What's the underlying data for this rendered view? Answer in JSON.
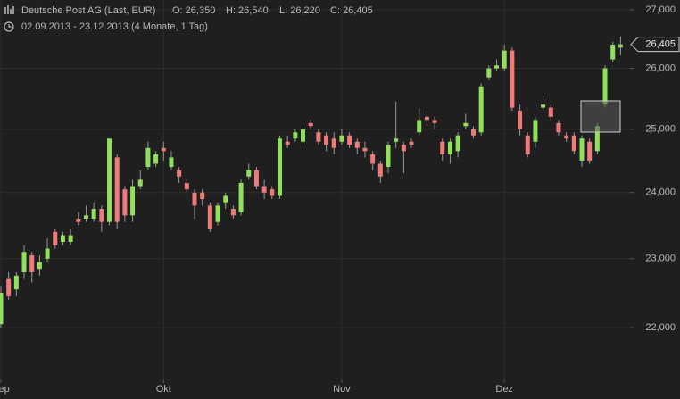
{
  "chart_data": {
    "type": "candlestick",
    "title": "Deutsche Post AG (Last, EUR)",
    "ohlc_labels": [
      "O: 26,350",
      "H: 26,540",
      "L: 26,220",
      "C: 26,405"
    ],
    "subtitle": "02.09.2013 - 23.12.2013 (4 Monate, 1 Tag)",
    "last_price_label": "26,405",
    "categories": [
      "Sep",
      null,
      null,
      null,
      null,
      null,
      null,
      null,
      null,
      null,
      null,
      null,
      null,
      null,
      null,
      null,
      null,
      null,
      null,
      null,
      null,
      "Okt",
      null,
      null,
      null,
      null,
      null,
      null,
      null,
      null,
      null,
      null,
      null,
      null,
      null,
      null,
      null,
      null,
      null,
      null,
      null,
      null,
      null,
      null,
      "Nov",
      null,
      null,
      null,
      null,
      null,
      null,
      null,
      null,
      null,
      null,
      null,
      null,
      null,
      null,
      null,
      null,
      null,
      null,
      null,
      null,
      "Dez",
      null,
      null,
      null,
      null,
      null,
      null,
      null,
      null,
      null,
      null,
      null,
      null,
      null,
      null,
      null
    ],
    "open": [
      22.05,
      22.7,
      22.55,
      22.8,
      23.05,
      22.85,
      23.0,
      23.4,
      23.25,
      23.25,
      23.6,
      23.6,
      23.6,
      23.75,
      23.55,
      24.55,
      24.05,
      23.65,
      24.1,
      24.4,
      24.45,
      24.7,
      24.4,
      24.35,
      24.15,
      24.0,
      24.0,
      23.8,
      23.55,
      23.85,
      23.75,
      23.7,
      24.25,
      24.35,
      24.1,
      24.05,
      23.95,
      24.8,
      24.85,
      24.8,
      25.1,
      24.95,
      24.9,
      24.85,
      24.8,
      24.9,
      24.8,
      24.7,
      24.6,
      24.45,
      24.4,
      24.8,
      24.75,
      24.8,
      24.95,
      25.2,
      25.15,
      24.8,
      24.6,
      24.65,
      25.05,
      25.0,
      24.95,
      25.85,
      26.0,
      26.0,
      26.3,
      25.3,
      24.9,
      24.8,
      25.35,
      25.35,
      25.1,
      24.9,
      24.9,
      24.5,
      24.8,
      24.65,
      25.4,
      26.15,
      26.35
    ],
    "high": [
      22.6,
      22.8,
      22.8,
      23.2,
      23.1,
      23.05,
      23.3,
      23.45,
      23.4,
      23.45,
      23.7,
      23.8,
      23.85,
      23.8,
      24.85,
      24.6,
      24.1,
      24.2,
      24.35,
      24.8,
      24.65,
      24.8,
      24.65,
      24.4,
      24.2,
      24.05,
      24.05,
      23.85,
      23.85,
      24.0,
      23.8,
      24.2,
      24.45,
      24.4,
      24.2,
      24.1,
      24.9,
      24.9,
      25.0,
      25.1,
      25.15,
      25.0,
      24.95,
      24.95,
      25.0,
      24.95,
      24.85,
      24.8,
      24.65,
      24.5,
      24.8,
      25.45,
      24.8,
      24.85,
      25.35,
      25.3,
      25.2,
      24.85,
      24.85,
      24.95,
      25.25,
      25.05,
      25.75,
      26.05,
      26.15,
      26.4,
      26.35,
      25.4,
      24.95,
      25.2,
      25.55,
      25.4,
      25.15,
      24.95,
      24.95,
      24.9,
      24.85,
      25.1,
      26.05,
      26.45,
      26.54
    ],
    "low": [
      22.0,
      22.4,
      22.45,
      22.7,
      22.65,
      22.75,
      22.95,
      23.15,
      23.2,
      23.2,
      23.5,
      23.55,
      23.55,
      23.4,
      23.5,
      23.45,
      23.55,
      23.55,
      24.05,
      24.35,
      24.4,
      24.5,
      24.35,
      24.15,
      24.0,
      23.6,
      23.8,
      23.4,
      23.5,
      23.75,
      23.6,
      23.65,
      24.2,
      24.05,
      23.9,
      23.9,
      23.9,
      24.7,
      24.8,
      24.75,
      25.0,
      24.75,
      24.65,
      24.6,
      24.75,
      24.7,
      24.6,
      24.55,
      24.35,
      24.15,
      24.3,
      24.7,
      24.3,
      24.7,
      24.9,
      25.05,
      25.0,
      24.5,
      24.45,
      24.55,
      25.0,
      24.85,
      24.9,
      25.8,
      25.95,
      25.95,
      25.3,
      24.9,
      24.55,
      24.7,
      25.3,
      25.15,
      24.9,
      24.8,
      24.6,
      24.4,
      24.45,
      24.6,
      25.35,
      26.1,
      26.22
    ],
    "close": [
      22.5,
      22.45,
      22.75,
      23.1,
      22.8,
      22.95,
      23.15,
      23.2,
      23.35,
      23.35,
      23.55,
      23.65,
      23.75,
      23.55,
      24.85,
      23.55,
      23.65,
      24.1,
      24.2,
      24.7,
      24.6,
      24.65,
      24.55,
      24.25,
      24.05,
      23.8,
      23.9,
      23.45,
      23.8,
      23.95,
      23.65,
      24.15,
      24.35,
      24.1,
      24.0,
      23.95,
      24.85,
      24.75,
      24.95,
      25.0,
      25.05,
      24.8,
      24.75,
      24.7,
      24.9,
      24.75,
      24.7,
      24.65,
      24.45,
      24.25,
      24.75,
      24.85,
      24.65,
      24.75,
      25.15,
      25.15,
      25.1,
      24.6,
      24.8,
      24.9,
      25.1,
      24.9,
      25.7,
      26.0,
      26.05,
      26.3,
      25.35,
      25.0,
      24.6,
      25.15,
      25.4,
      25.2,
      24.95,
      24.85,
      24.65,
      24.85,
      24.5,
      25.05,
      26.0,
      26.4,
      26.405
    ],
    "up_color": "#8fe05a",
    "down_color": "#ef7a7a",
    "log_y": true,
    "ylim": [
      21.28,
      27.17
    ],
    "yticks": [
      {
        "value": 22,
        "label": "22,000"
      },
      {
        "value": 23,
        "label": "23,000"
      },
      {
        "value": 24,
        "label": "24,000"
      },
      {
        "value": 25,
        "label": "25,000"
      },
      {
        "value": 26,
        "label": "26,000"
      },
      {
        "value": 27,
        "label": "27,000"
      }
    ],
    "grid": true
  }
}
